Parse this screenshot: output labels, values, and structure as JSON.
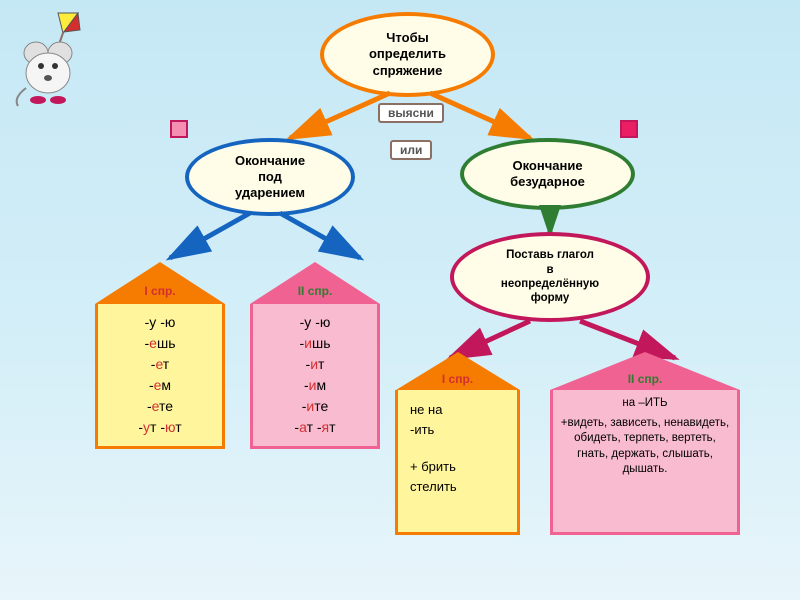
{
  "colors": {
    "orange": "#f57c00",
    "blue": "#1565c0",
    "green": "#2e7d32",
    "pink": "#c2185b",
    "brown": "#8d6e63",
    "stress": "#d32f2f",
    "house1_fill": "#fff59d",
    "house2_fill": "#f8bbd0",
    "roof1": "#f57c00",
    "roof2": "#f06292",
    "sq_fill_left": "#f48fb1",
    "sq_fill_right": "#e91e63"
  },
  "bubbles": {
    "root": "Чтобы\nопределить\nспряжение",
    "left": "Окончание\nпод\nударением",
    "right": "Окончание\nбезударное",
    "infinitive": "Поставь глагол\nв\nнеопределённую\nформу"
  },
  "tags": {
    "find_out": "выясни",
    "or": "или"
  },
  "houses": {
    "h1_label": "I спр.",
    "h2_label": "II спр.",
    "h3_label": "I спр.",
    "h4_label": "II спр.",
    "h1_lines": [
      {
        "pre": "-у  -ю",
        "s": "",
        "post": ""
      },
      {
        "pre": "-",
        "s": "е",
        "post": "шь"
      },
      {
        "pre": "-",
        "s": "е",
        "post": "т"
      },
      {
        "pre": "-",
        "s": "е",
        "post": "м"
      },
      {
        "pre": "-",
        "s": "е",
        "post": "те"
      },
      {
        "pre": "-",
        "s": "у",
        "post": "т  -",
        "s2": "ю",
        "post2": "т"
      }
    ],
    "h2_lines": [
      {
        "pre": "-у  -ю",
        "s": "",
        "post": ""
      },
      {
        "pre": "-",
        "s": "и",
        "post": "шь"
      },
      {
        "pre": "-",
        "s": "и",
        "post": "т"
      },
      {
        "pre": "-",
        "s": "и",
        "post": "м"
      },
      {
        "pre": "-",
        "s": "и",
        "post": "те"
      },
      {
        "pre": "-",
        "s": "а",
        "post": "т  -",
        "s2": "я",
        "post2": "т"
      }
    ],
    "h3_text_top": "не на",
    "h3_text_mid": "-ить",
    "h3_text_plus": "+ брить",
    "h3_text_bot": "стелить",
    "h4_text_top": "на –ИТЬ",
    "h4_text_body": "+видеть, зависеть, ненавидеть, обидеть, терпеть, вертеть, гнать, держать, слышать, дышать."
  }
}
